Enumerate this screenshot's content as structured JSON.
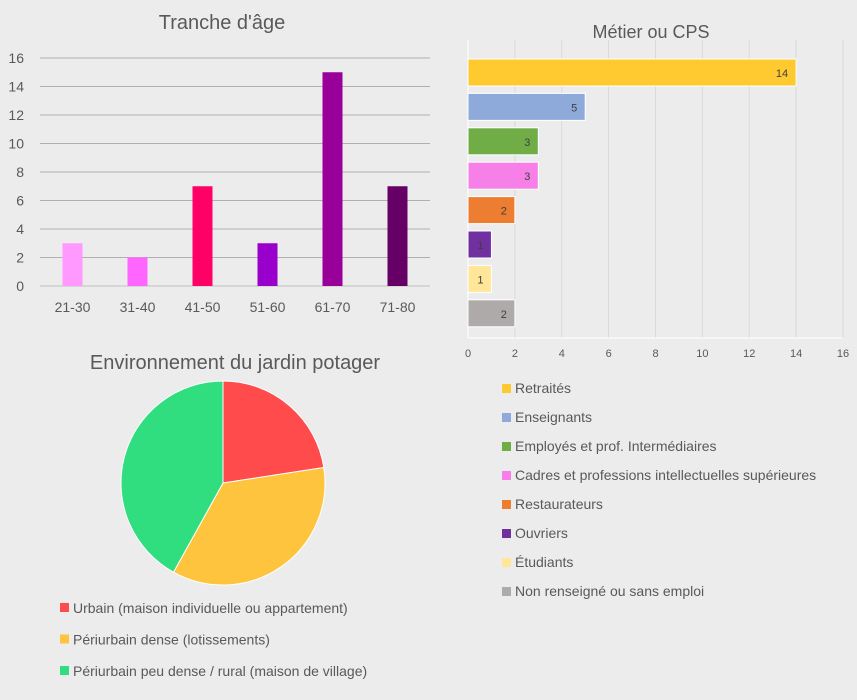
{
  "chart_data": [
    {
      "type": "bar",
      "title": "Tranche d'âge",
      "categories": [
        "21-30",
        "31-40",
        "41-50",
        "51-60",
        "61-70",
        "71-80"
      ],
      "values": [
        3,
        2,
        7,
        3,
        15,
        7
      ],
      "colors": [
        "#ff99ff",
        "#ff66ff",
        "#ff0066",
        "#9900cc",
        "#990099",
        "#660066"
      ],
      "ylim": [
        0,
        16
      ],
      "yticks": [
        "0",
        "2",
        "4",
        "6",
        "8",
        "10",
        "12",
        "14",
        "16"
      ],
      "grid": true
    },
    {
      "type": "bar",
      "orientation": "horizontal",
      "title": "Métier ou CPS",
      "categories": [
        "Retraités",
        "Enseignants",
        "Employés et prof. Intermédiaires",
        "Cadres et professions intellectuelles supérieures",
        "Restaurateurs",
        "Ouvriers",
        "Étudiants",
        "Non renseigné ou sans emploi"
      ],
      "values": [
        14,
        5,
        3,
        3,
        2,
        1,
        1,
        2
      ],
      "labels": [
        "14",
        "5",
        "3",
        "3",
        "2",
        "1",
        "1",
        "2"
      ],
      "colors": [
        "#ffca30",
        "#8eaadb",
        "#70ad47",
        "#f67fe8",
        "#ed7d31",
        "#7030a0",
        "#ffe699",
        "#aeaaaa"
      ],
      "xlim": [
        0,
        16
      ],
      "xticks": [
        "0",
        "2",
        "4",
        "6",
        "8",
        "10",
        "12",
        "14",
        "16"
      ],
      "legend_position": "bottom",
      "grid": true
    },
    {
      "type": "pie",
      "title": "Environnement du jardin potager",
      "categories": [
        "Urbain (maison individuelle ou appartement)",
        "Périurbain dense (lotissements)",
        "Périurbain peu dense / rural (maison de village)"
      ],
      "values": [
        7,
        11,
        13
      ],
      "colors": [
        "#ff4b4b",
        "#ffc43d",
        "#31de7f"
      ],
      "legend_position": "bottom"
    }
  ]
}
